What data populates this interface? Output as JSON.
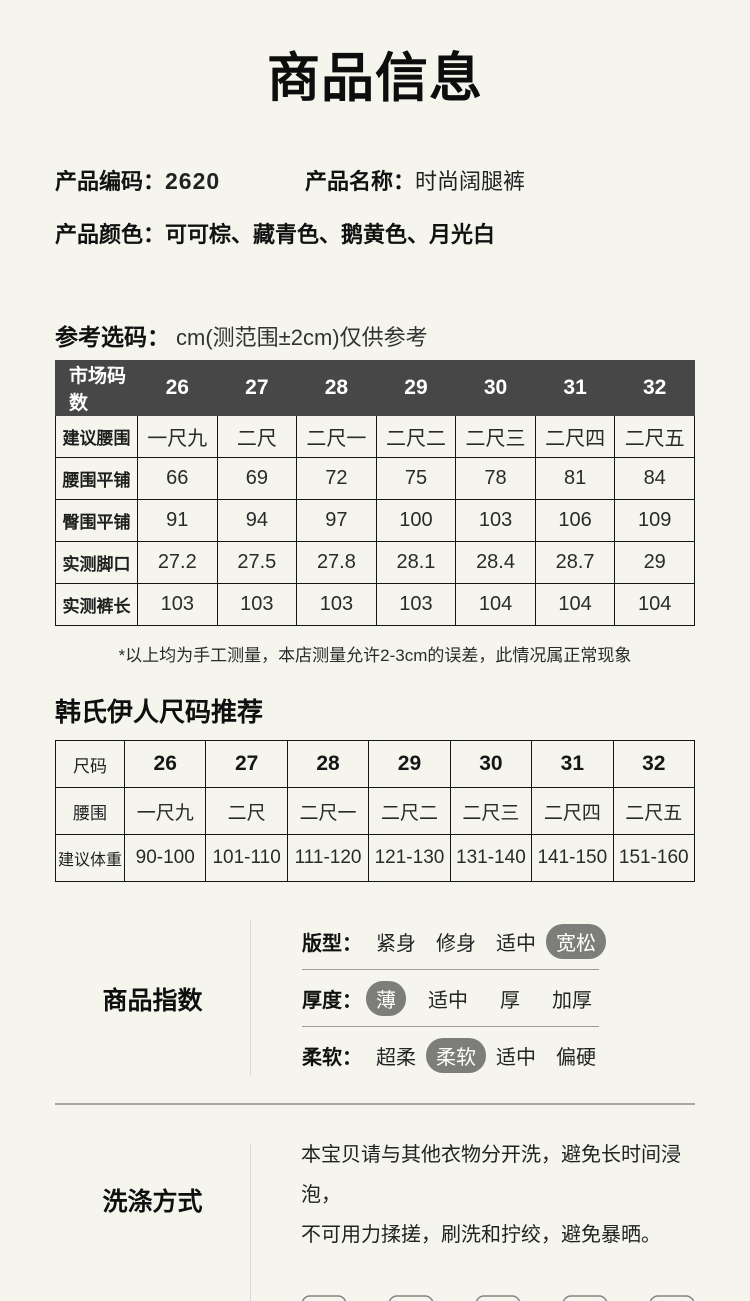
{
  "page": {
    "title": "商品信息"
  },
  "product": {
    "code_label": "产品编码：",
    "code": "2620",
    "name_label": "产品名称：",
    "name": "时尚阔腿裤",
    "color_label": "产品颜色：",
    "colors": "可可棕、藏青色、鹅黄色、月光白"
  },
  "size_reference": {
    "label": "参考选码：",
    "hint": "cm(测范围±2cm)仅供参考",
    "table": {
      "header": [
        "市场码数",
        "26",
        "27",
        "28",
        "29",
        "30",
        "31",
        "32"
      ],
      "rows": [
        [
          "建议腰围",
          "一尺九",
          "二尺",
          "二尺一",
          "二尺二",
          "二尺三",
          "二尺四",
          "二尺五"
        ],
        [
          "腰围平铺",
          "66",
          "69",
          "72",
          "75",
          "78",
          "81",
          "84"
        ],
        [
          "臀围平铺",
          "91",
          "94",
          "97",
          "100",
          "103",
          "106",
          "109"
        ],
        [
          "实测脚口",
          "27.2",
          "27.5",
          "27.8",
          "28.1",
          "28.4",
          "28.7",
          "29"
        ],
        [
          "实测裤长",
          "103",
          "103",
          "103",
          "103",
          "104",
          "104",
          "104"
        ]
      ]
    },
    "note": "*以上均为手工测量，本店测量允许2-3cm的误差，此情况属正常现象"
  },
  "recommendation": {
    "title": "韩氏伊人尺码推荐",
    "table": {
      "rows": [
        [
          "尺码",
          "26",
          "27",
          "28",
          "29",
          "30",
          "31",
          "32"
        ],
        [
          "腰围",
          "一尺九",
          "二尺",
          "二尺一",
          "二尺二",
          "二尺三",
          "二尺四",
          "二尺五"
        ],
        [
          "建议体重",
          "90-100",
          "101-110",
          "111-120",
          "121-130",
          "131-140",
          "141-150",
          "151-160"
        ]
      ]
    }
  },
  "product_index": {
    "title": "商品指数",
    "rows": [
      {
        "label": "版型：",
        "options": [
          "紧身",
          "修身",
          "适中",
          "宽松"
        ],
        "selected": "宽松"
      },
      {
        "label": "厚度：",
        "options": [
          "薄",
          "适中",
          "厚",
          "加厚"
        ],
        "selected": "薄"
      },
      {
        "label": "柔软：",
        "options": [
          "超柔",
          "柔软",
          "适中",
          "偏硬"
        ],
        "selected": "柔软"
      }
    ]
  },
  "washing": {
    "title": "洗涤方式",
    "lines": [
      "本宝贝请与其他衣物分开洗，避免长时间浸泡，",
      "不可用力揉搓，刷洗和拧绞，避免暴晒。"
    ],
    "icons": [
      "wash-40-icon",
      "no-bleach-icon",
      "drip-dry-icon",
      "iron-icon",
      "dry-in-shade-icon"
    ]
  },
  "colors": {
    "background": "#f5f5ee",
    "table_header_bg": "#474747",
    "table_header_text": "#ffffff",
    "selected_pill_bg": "#7d7d7a",
    "selected_pill_text": "#ffffff",
    "table_border": "#161616",
    "divider": "#a8a8a3",
    "icon_stroke": "#85857f"
  }
}
